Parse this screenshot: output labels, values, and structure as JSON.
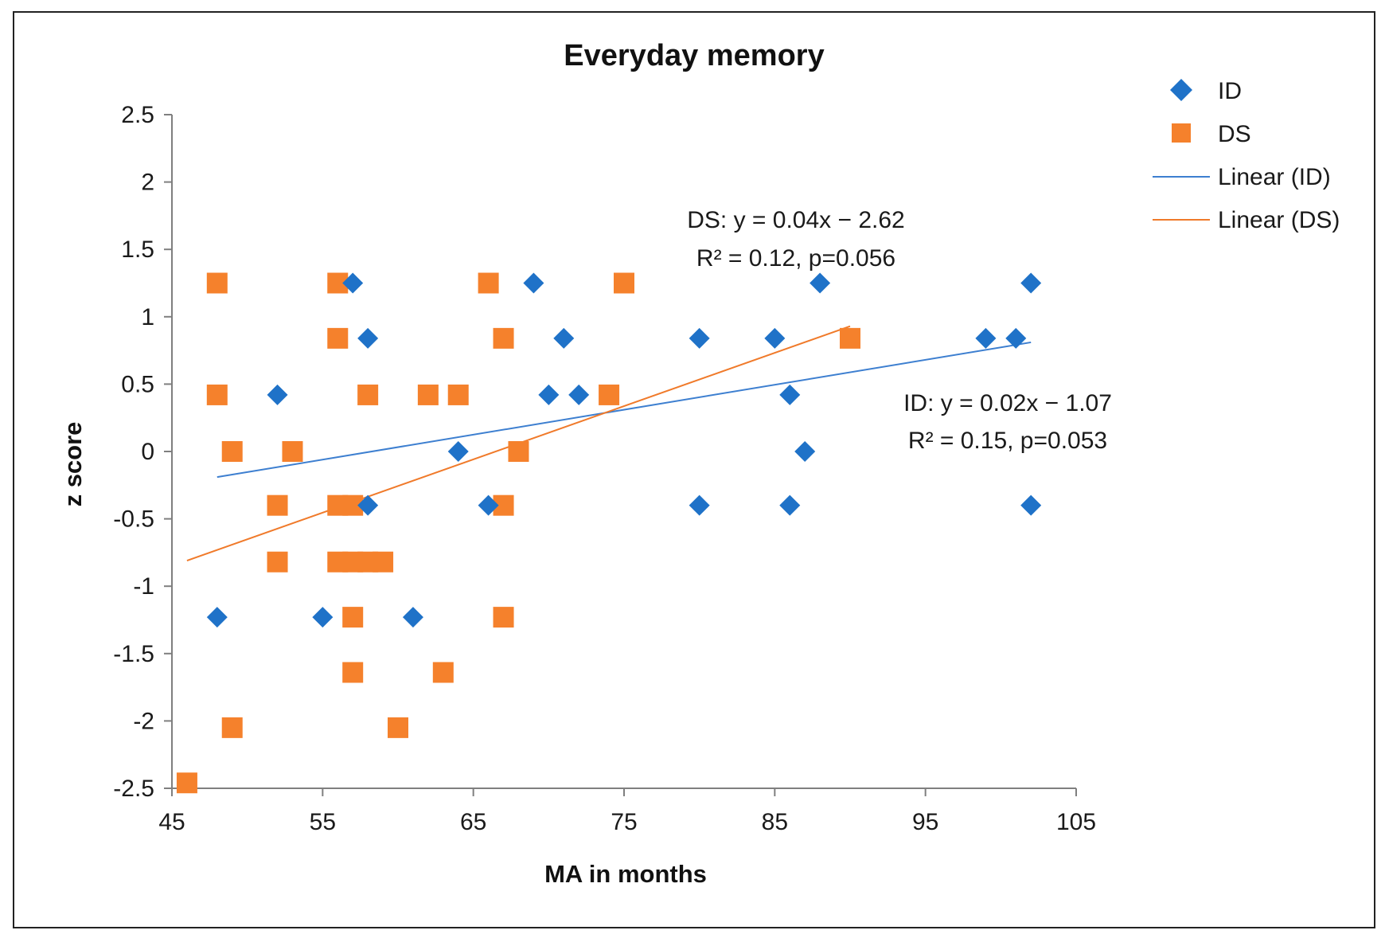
{
  "chart_data": {
    "type": "scatter",
    "title": "Everyday memory",
    "xlabel": "MA in months",
    "ylabel": "z score",
    "xlim": [
      45,
      105
    ],
    "ylim": [
      -2.5,
      2.5
    ],
    "xticks": [
      45,
      55,
      65,
      75,
      85,
      95,
      105
    ],
    "yticks": [
      2.5,
      2,
      1.5,
      1,
      0.5,
      0,
      -0.5,
      -1,
      -1.5,
      -2,
      -2.5
    ],
    "xtick_labels": [
      "45",
      "55",
      "65",
      "75",
      "85",
      "95",
      "105"
    ],
    "ytick_labels": [
      "2.5",
      "2",
      "1.5",
      "1",
      "0.5",
      "0",
      "-0.5",
      "-1",
      "-1.5",
      "-2",
      "-2.5"
    ],
    "legend_position": "top-right",
    "grid": false,
    "series": [
      {
        "name": "ID",
        "marker": "diamond",
        "color": "#1f72c8",
        "points": [
          {
            "x": 57,
            "y": 1.25
          },
          {
            "x": 69,
            "y": 1.25
          },
          {
            "x": 88,
            "y": 1.25
          },
          {
            "x": 102,
            "y": 1.25
          },
          {
            "x": 58,
            "y": 0.84
          },
          {
            "x": 71,
            "y": 0.84
          },
          {
            "x": 80,
            "y": 0.84
          },
          {
            "x": 85,
            "y": 0.84
          },
          {
            "x": 99,
            "y": 0.84
          },
          {
            "x": 101,
            "y": 0.84
          },
          {
            "x": 52,
            "y": 0.42
          },
          {
            "x": 70,
            "y": 0.42
          },
          {
            "x": 72,
            "y": 0.42
          },
          {
            "x": 86,
            "y": 0.42
          },
          {
            "x": 64,
            "y": 0.0
          },
          {
            "x": 87,
            "y": 0.0
          },
          {
            "x": 58,
            "y": -0.4
          },
          {
            "x": 66,
            "y": -0.4
          },
          {
            "x": 80,
            "y": -0.4
          },
          {
            "x": 86,
            "y": -0.4
          },
          {
            "x": 102,
            "y": -0.4
          },
          {
            "x": 48,
            "y": -1.23
          },
          {
            "x": 55,
            "y": -1.23
          },
          {
            "x": 61,
            "y": -1.23
          }
        ]
      },
      {
        "name": "DS",
        "marker": "square",
        "color": "#f5812c",
        "points": [
          {
            "x": 48,
            "y": 1.25
          },
          {
            "x": 56,
            "y": 1.25
          },
          {
            "x": 66,
            "y": 1.25
          },
          {
            "x": 75,
            "y": 1.25
          },
          {
            "x": 56,
            "y": 0.84
          },
          {
            "x": 67,
            "y": 0.84
          },
          {
            "x": 90,
            "y": 0.84
          },
          {
            "x": 48,
            "y": 0.42
          },
          {
            "x": 58,
            "y": 0.42
          },
          {
            "x": 62,
            "y": 0.42
          },
          {
            "x": 64,
            "y": 0.42
          },
          {
            "x": 74,
            "y": 0.42
          },
          {
            "x": 49,
            "y": 0.0
          },
          {
            "x": 53,
            "y": 0.0
          },
          {
            "x": 68,
            "y": 0.0
          },
          {
            "x": 52,
            "y": -0.4
          },
          {
            "x": 56,
            "y": -0.4
          },
          {
            "x": 57,
            "y": -0.4
          },
          {
            "x": 67,
            "y": -0.4
          },
          {
            "x": 52,
            "y": -0.82
          },
          {
            "x": 56,
            "y": -0.82
          },
          {
            "x": 57,
            "y": -0.82
          },
          {
            "x": 58,
            "y": -0.82
          },
          {
            "x": 59,
            "y": -0.82
          },
          {
            "x": 57,
            "y": -1.23
          },
          {
            "x": 67,
            "y": -1.23
          },
          {
            "x": 57,
            "y": -1.64
          },
          {
            "x": 63,
            "y": -1.64
          },
          {
            "x": 49,
            "y": -2.05
          },
          {
            "x": 60,
            "y": -2.05
          },
          {
            "x": 46,
            "y": -2.46
          }
        ]
      }
    ],
    "trendlines": [
      {
        "name": "Linear (ID)",
        "color": "#3d7fd0",
        "x_start": 48,
        "x_end": 102,
        "y_start": -0.19,
        "y_end": 0.81
      },
      {
        "name": "Linear (DS)",
        "color": "#f07a2a",
        "x_start": 46,
        "x_end": 90,
        "y_start": -0.81,
        "y_end": 0.93
      }
    ],
    "annotations": [
      {
        "id": "ds-eq",
        "line1": "DS: y = 0.04x − 2.62",
        "line2": "R² = 0.12, p=0.056"
      },
      {
        "id": "id-eq",
        "line1": "ID: y = 0.02x − 1.07",
        "line2": "R² = 0.15, p=0.053"
      }
    ]
  }
}
